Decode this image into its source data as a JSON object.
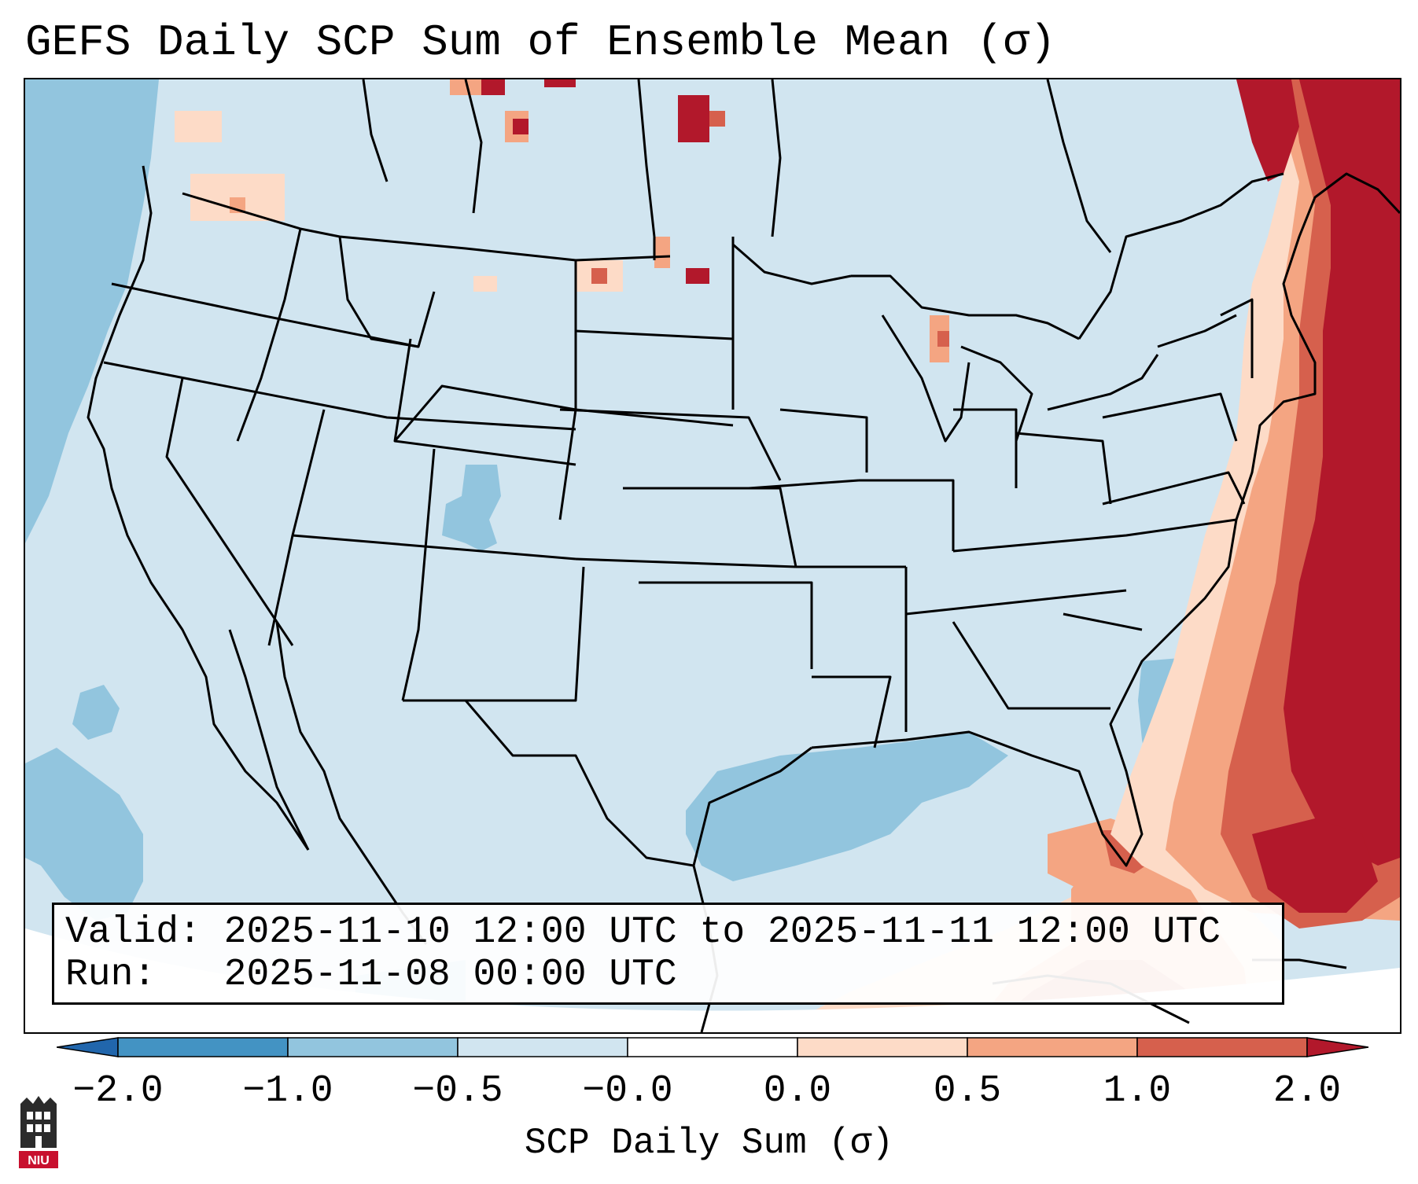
{
  "title": "GEFS Daily SCP Sum of Ensemble Mean (σ)",
  "info": {
    "valid_label": "Valid:",
    "valid_value": "2025-11-10 12:00 UTC to 2025-11-11 12:00 UTC",
    "run_label": "Run:",
    "run_value": "2025-11-08 00:00 UTC"
  },
  "colorbar": {
    "label": "SCP Daily Sum (σ)",
    "ticks": [
      "−2.0",
      "−1.0",
      "−0.5",
      "−0.0",
      "0.0",
      "0.5",
      "1.0",
      "2.0"
    ],
    "colors": {
      "below": "#2166ac",
      "bin1": "#4393c3",
      "bin2": "#92c5de",
      "bin3": "#d1e5f0",
      "bin4": "#fddbc7",
      "bin5": "#f4a582",
      "bin6": "#d6604d",
      "above": "#b2182b"
    }
  },
  "logo": {
    "text": "NIU",
    "name": "niu-logo"
  },
  "colors": {
    "base_field": "#d1e5f0",
    "negative_field": "#92c5de",
    "positive_light": "#fddbc7",
    "positive_mid": "#f4a582",
    "positive_strong": "#d6604d",
    "positive_max": "#b2182b"
  }
}
